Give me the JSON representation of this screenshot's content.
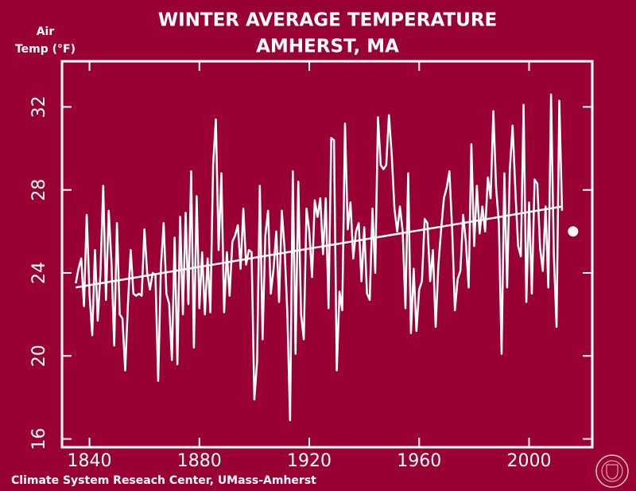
{
  "chart_data": {
    "type": "line",
    "title": [
      "WINTER AVERAGE TEMPERATURE",
      "AMHERST, MA"
    ],
    "y_label": [
      "Air",
      "Temp (°F)"
    ],
    "footer": "Climate System Reseach Center, UMass-Amherst",
    "background": "#990033",
    "xlim": [
      1830,
      2023
    ],
    "xticks": [
      1840,
      1880,
      1920,
      1960,
      2000
    ],
    "ylim": [
      15.6,
      34.2
    ],
    "yticks": [
      16,
      20,
      24,
      28,
      32
    ],
    "series": [
      {
        "color": "#ffffff",
        "marker": false,
        "x": [
          1835,
          1836,
          1837,
          1838,
          1839,
          1840,
          1841,
          1842,
          1843,
          1844,
          1845,
          1846,
          1847,
          1848,
          1849,
          1850,
          1851,
          1852,
          1853,
          1854,
          1855,
          1856,
          1857,
          1858,
          1859,
          1860,
          1861,
          1862,
          1863,
          1864,
          1865,
          1866,
          1867,
          1868,
          1869,
          1870,
          1871,
          1872,
          1873,
          1874,
          1875,
          1876,
          1877,
          1878,
          1879,
          1880,
          1881,
          1882,
          1883,
          1884,
          1885,
          1886,
          1887,
          1888,
          1889,
          1890,
          1891,
          1892,
          1893,
          1894,
          1895,
          1896,
          1897,
          1898,
          1899,
          1900,
          1901,
          1902,
          1903,
          1904,
          1905,
          1906,
          1907,
          1908,
          1909,
          1910,
          1911,
          1912,
          1913,
          1914,
          1915,
          1916,
          1917,
          1918,
          1919,
          1920,
          1921,
          1922,
          1923,
          1924,
          1925,
          1926,
          1927,
          1928,
          1929,
          1930,
          1931,
          1932,
          1933,
          1934,
          1935,
          1936,
          1937,
          1938,
          1939,
          1940,
          1941,
          1942,
          1943,
          1944,
          1945,
          1946,
          1947,
          1948,
          1949,
          1950,
          1951,
          1952,
          1953,
          1954,
          1955,
          1956,
          1957,
          1958,
          1959,
          1960,
          1961,
          1962,
          1963,
          1964,
          1965,
          1966,
          1967,
          1968,
          1969,
          1970,
          1971,
          1972,
          1973,
          1974,
          1975,
          1976,
          1977,
          1978,
          1979,
          1980,
          1981,
          1982,
          1983,
          1984,
          1985,
          1986,
          1987,
          1988,
          1989,
          1990,
          1991,
          1992,
          1993,
          1994,
          1995,
          1996,
          1997,
          1998,
          1999,
          2000,
          2001,
          2002,
          2003,
          2004,
          2005,
          2006,
          2007,
          2008,
          2009,
          2010,
          2011,
          2012
        ],
        "values": [
          23.5,
          24.2,
          24.7,
          22.4,
          26.8,
          23.0,
          21.0,
          25.1,
          21.7,
          24.0,
          28.2,
          22.7,
          27.0,
          24.5,
          20.5,
          26.4,
          22.0,
          21.8,
          19.3,
          22.5,
          25.1,
          23.0,
          22.9,
          23.0,
          22.9,
          26.1,
          24.0,
          23.2,
          24.0,
          23.9,
          18.8,
          24.3,
          26.4,
          23.0,
          22.5,
          19.8,
          25.7,
          19.6,
          26.7,
          22.0,
          26.9,
          22.5,
          28.9,
          20.4,
          27.7,
          22.3,
          25.0,
          22.0,
          24.7,
          22.1,
          29.2,
          31.4,
          25.1,
          28.8,
          22.1,
          25.0,
          22.9,
          25.5,
          25.8,
          26.3,
          24.2,
          27.1,
          24.4,
          25.1,
          25.0,
          17.9,
          19.7,
          28.2,
          20.8,
          25.8,
          27.0,
          23.0,
          24.2,
          26.0,
          22.6,
          27.0,
          25.2,
          22.1,
          16.9,
          28.9,
          20.1,
          28.4,
          22.0,
          20.8,
          27.1,
          26.0,
          23.8,
          27.5,
          26.7,
          27.6,
          24.9,
          27.6,
          22.3,
          30.5,
          30.4,
          19.3,
          23.1,
          22.2,
          31.2,
          26.1,
          27.4,
          24.7,
          26.0,
          26.4,
          23.6,
          26.2,
          23.0,
          22.7,
          27.1,
          24.0,
          31.5,
          29.2,
          29.0,
          29.2,
          31.6,
          29.7,
          27.1,
          26.0,
          27.2,
          26.0,
          22.3,
          28.8,
          21.1,
          24.2,
          21.2,
          23.2,
          23.6,
          26.6,
          26.4,
          23.6,
          25.1,
          21.4,
          24.4,
          26.1,
          27.6,
          28.1,
          28.9,
          26.1,
          22.2,
          23.7,
          24.1,
          26.8,
          25.5,
          23.3,
          30.2,
          25.3,
          28.2,
          25.9,
          27.2,
          26.0,
          28.6,
          27.6,
          31.8,
          28.1,
          26.4,
          20.1,
          28.8,
          23.3,
          29.0,
          31.1,
          28.0,
          25.3,
          24.8,
          32.1,
          22.6,
          27.4,
          23.0,
          28.5,
          28.3,
          25.2,
          24.1,
          27.2,
          23.3,
          32.6,
          24.9,
          21.4,
          32.3,
          27.0
        ]
      },
      {
        "color": "#ffffff",
        "marker": false,
        "x": [
          1835,
          2012
        ],
        "values": [
          23.3,
          27.2
        ]
      },
      {
        "color": "#ffffff",
        "marker": true,
        "x": [
          2016
        ],
        "values": [
          26.0
        ]
      }
    ]
  }
}
